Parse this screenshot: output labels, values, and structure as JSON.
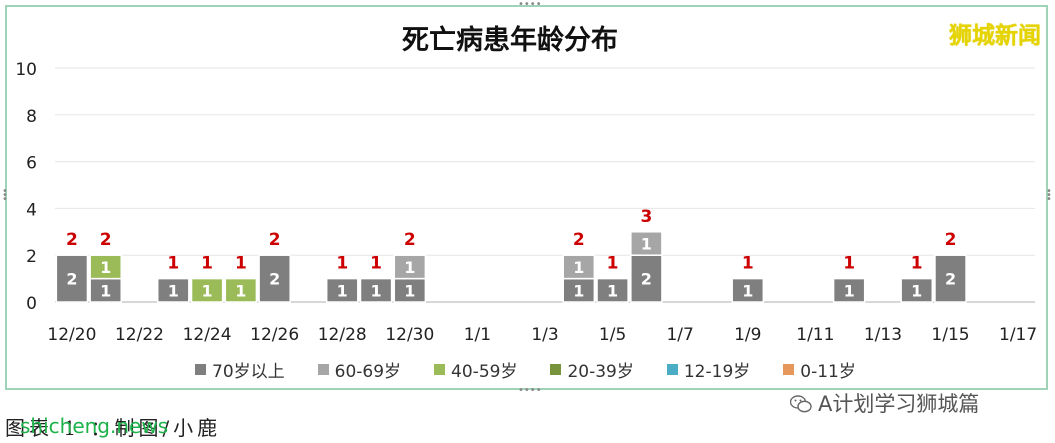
{
  "watermark": "狮城新闻",
  "source_site": "shicheng.news",
  "caption": "图表 1 ：制图/小鹿",
  "wechat_credit": "A计划学习狮城篇",
  "chart_data": {
    "type": "bar",
    "stacked": true,
    "title": "死亡病患年龄分布",
    "xlabel": "",
    "ylabel": "",
    "ylim": [
      0,
      10
    ],
    "yticks": [
      0,
      2,
      4,
      6,
      8,
      10
    ],
    "grid": true,
    "legend_position": "bottom",
    "categories": [
      "12/20",
      "12/21",
      "12/22",
      "12/23",
      "12/24",
      "12/25",
      "12/26",
      "12/27",
      "12/28",
      "12/29",
      "12/30",
      "12/31",
      "1/1",
      "1/2",
      "1/3",
      "1/4",
      "1/5",
      "1/6",
      "1/7",
      "1/8",
      "1/9",
      "1/10",
      "1/11",
      "1/12",
      "1/13",
      "1/14",
      "1/15",
      "1/16",
      "1/17"
    ],
    "x_tick_labels": [
      "12/20",
      "12/22",
      "12/24",
      "12/26",
      "12/28",
      "12/30",
      "1/1",
      "1/3",
      "1/5",
      "1/7",
      "1/9",
      "1/11",
      "1/13",
      "1/15",
      "1/17"
    ],
    "series": [
      {
        "name": "70岁以上",
        "color": "#7f7f7f",
        "values": [
          2,
          1,
          0,
          1,
          0,
          0,
          2,
          0,
          1,
          1,
          1,
          0,
          0,
          0,
          0,
          1,
          1,
          2,
          0,
          0,
          1,
          0,
          0,
          1,
          0,
          1,
          2,
          0,
          0
        ]
      },
      {
        "name": "60-69岁",
        "color": "#a6a6a6",
        "values": [
          0,
          0,
          0,
          0,
          0,
          0,
          0,
          0,
          0,
          0,
          1,
          0,
          0,
          0,
          0,
          1,
          0,
          1,
          0,
          0,
          0,
          0,
          0,
          0,
          0,
          0,
          0,
          0,
          0
        ]
      },
      {
        "name": "40-59岁",
        "color": "#9bbb59",
        "values": [
          0,
          1,
          0,
          0,
          1,
          1,
          0,
          0,
          0,
          0,
          0,
          0,
          0,
          0,
          0,
          0,
          0,
          0,
          0,
          0,
          0,
          0,
          0,
          0,
          0,
          0,
          0,
          0,
          0
        ]
      },
      {
        "name": "20-39岁",
        "color": "#77933c",
        "values": [
          0,
          0,
          0,
          0,
          0,
          0,
          0,
          0,
          0,
          0,
          0,
          0,
          0,
          0,
          0,
          0,
          0,
          0,
          0,
          0,
          0,
          0,
          0,
          0,
          0,
          0,
          0,
          0,
          0
        ]
      },
      {
        "name": "12-19岁",
        "color": "#4bacc6",
        "values": [
          0,
          0,
          0,
          0,
          0,
          0,
          0,
          0,
          0,
          0,
          0,
          0,
          0,
          0,
          0,
          0,
          0,
          0,
          0,
          0,
          0,
          0,
          0,
          0,
          0,
          0,
          0,
          0,
          0
        ]
      },
      {
        "name": "0-11岁",
        "color": "#e6975c",
        "values": [
          0,
          0,
          0,
          0,
          0,
          0,
          0,
          0,
          0,
          0,
          0,
          0,
          0,
          0,
          0,
          0,
          0,
          0,
          0,
          0,
          0,
          0,
          0,
          0,
          0,
          0,
          0,
          0,
          0
        ]
      }
    ],
    "total_label_color": "#cc0000"
  }
}
